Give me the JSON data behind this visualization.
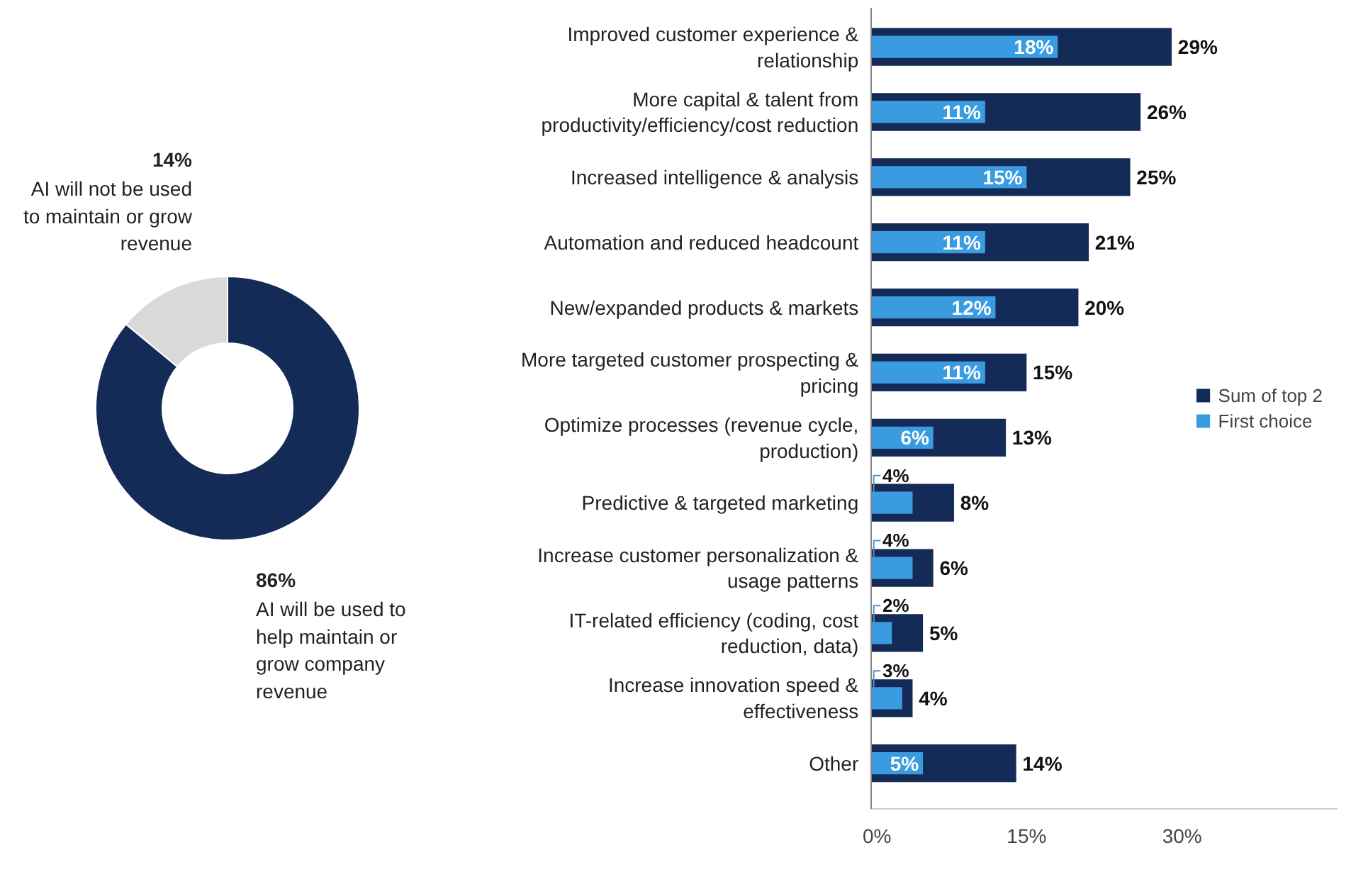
{
  "chart_data": [
    {
      "type": "donut",
      "categories": [
        "AI will not be used to maintain or grow revenue",
        "AI will be used to help maintain or grow company revenue"
      ],
      "values": [
        14,
        86
      ],
      "colors": [
        "#d9d9d9",
        "#152b57"
      ],
      "value_labels": [
        "14%",
        "86%"
      ]
    },
    {
      "type": "bar",
      "orientation": "horizontal",
      "categories": [
        "Improved customer experience & relationship",
        "More capital & talent from productivity/efficiency/cost reduction",
        "Increased intelligence & analysis",
        "Automation and reduced headcount",
        "New/expanded products & markets",
        "More targeted customer prospecting & pricing",
        "Optimize processes (revenue cycle, production)",
        "Predictive & targeted marketing",
        "Increase customer personalization & usage patterns",
        "IT-related efficiency (coding, cost reduction, data)",
        "Increase innovation speed & effectiveness",
        "Other"
      ],
      "series": [
        {
          "name": "Sum of top 2",
          "color": "#152b57",
          "values": [
            29,
            26,
            25,
            21,
            20,
            15,
            13,
            8,
            6,
            5,
            4,
            14
          ],
          "value_labels": [
            "29%",
            "26%",
            "25%",
            "21%",
            "20%",
            "15%",
            "13%",
            "8%",
            "6%",
            "5%",
            "4%",
            "14%"
          ]
        },
        {
          "name": "First choice",
          "color": "#3a9be0",
          "values": [
            18,
            11,
            15,
            11,
            12,
            11,
            6,
            4,
            4,
            2,
            3,
            5
          ],
          "value_labels": [
            "18%",
            "11%",
            "15%",
            "11%",
            "12%",
            "11%",
            "6%",
            "4%",
            "4%",
            "2%",
            "3%",
            "5%"
          ]
        }
      ],
      "xlim": [
        0,
        45
      ],
      "xticks": [
        {
          "value": 0,
          "label": "0%"
        },
        {
          "value": 15,
          "label": "15%"
        },
        {
          "value": 30,
          "label": "30%"
        }
      ],
      "legend": "right",
      "grid": false
    }
  ]
}
